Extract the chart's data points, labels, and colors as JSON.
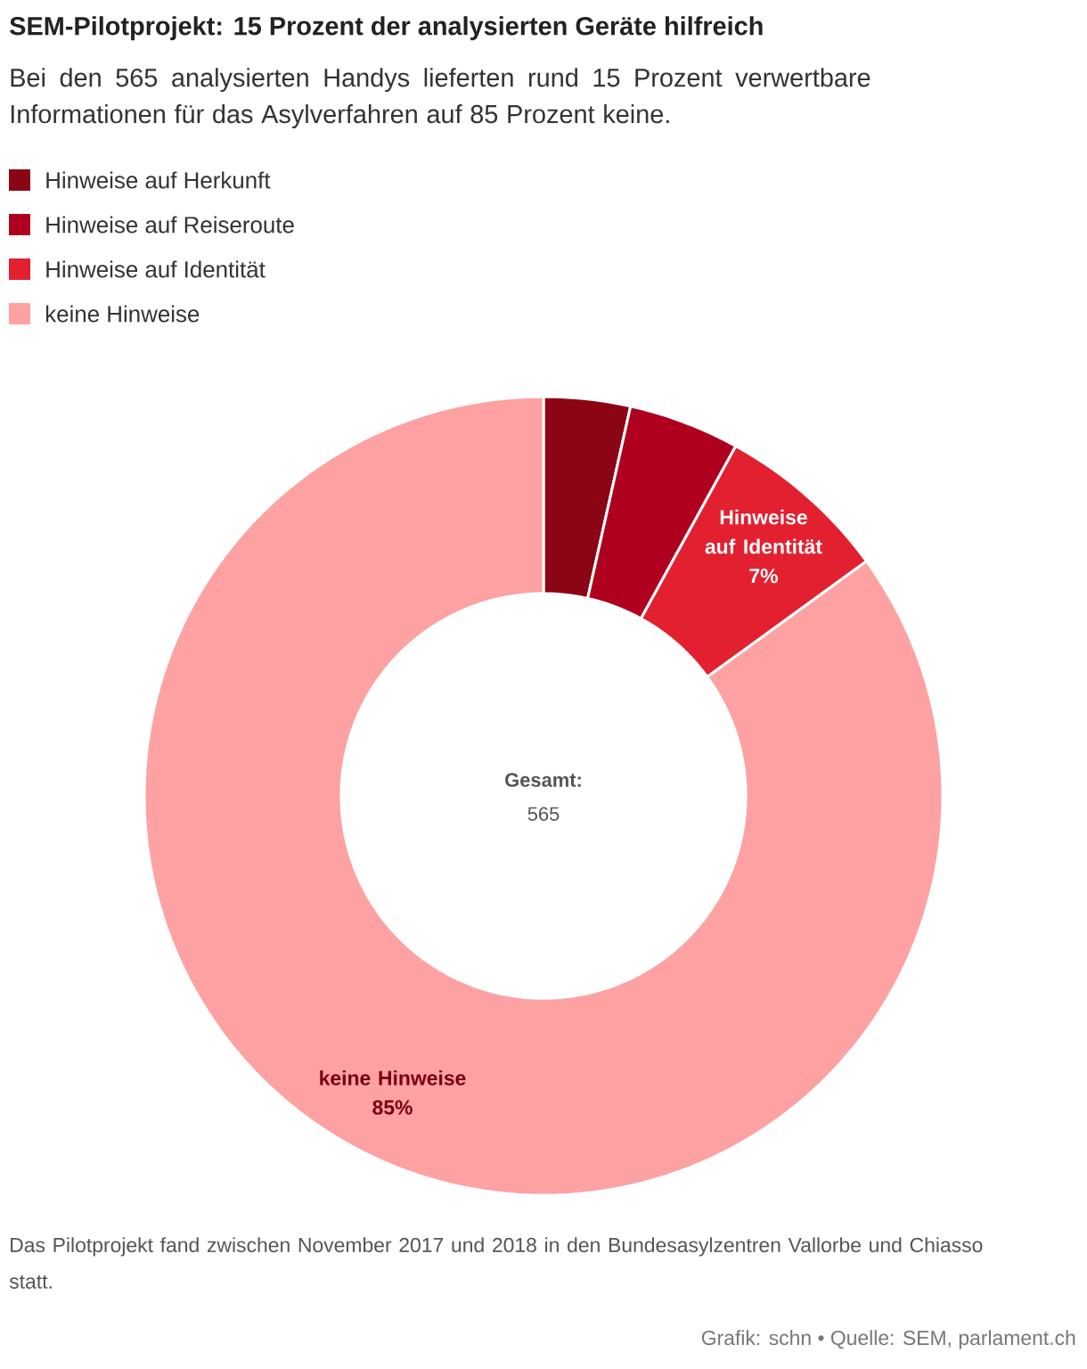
{
  "chart_data": {
    "type": "donut",
    "title": "SEM-Pilotprojekt: 15 Prozent der analysierten Geräte hilfreich",
    "subtitle": "Bei den 565 analysierten Handys lieferten rund 15 Prozent verwertbare Informationen für das Asylverfahren auf 85 Prozent keine.",
    "categories": [
      "Hinweise auf Herkunft",
      "Hinweise auf Reiseroute",
      "Hinweise auf Identität",
      "keine Hinweise"
    ],
    "values": [
      3.5,
      4.5,
      7,
      85
    ],
    "colors": [
      "#8b0515",
      "#b00020",
      "#e3202f",
      "#fda1a3"
    ],
    "value_labels": [
      null,
      null,
      "7%",
      "85%"
    ],
    "legend": "top left",
    "annotations": [
      "Gesamt:",
      "565",
      "Das Pilotprojekt fand zwischen November 2017 und 2018 in den Bundesasylzentren Vallorbe und Chiasso statt.",
      "Grafik: schn • Quelle: SEM, parlament.ch"
    ]
  }
}
